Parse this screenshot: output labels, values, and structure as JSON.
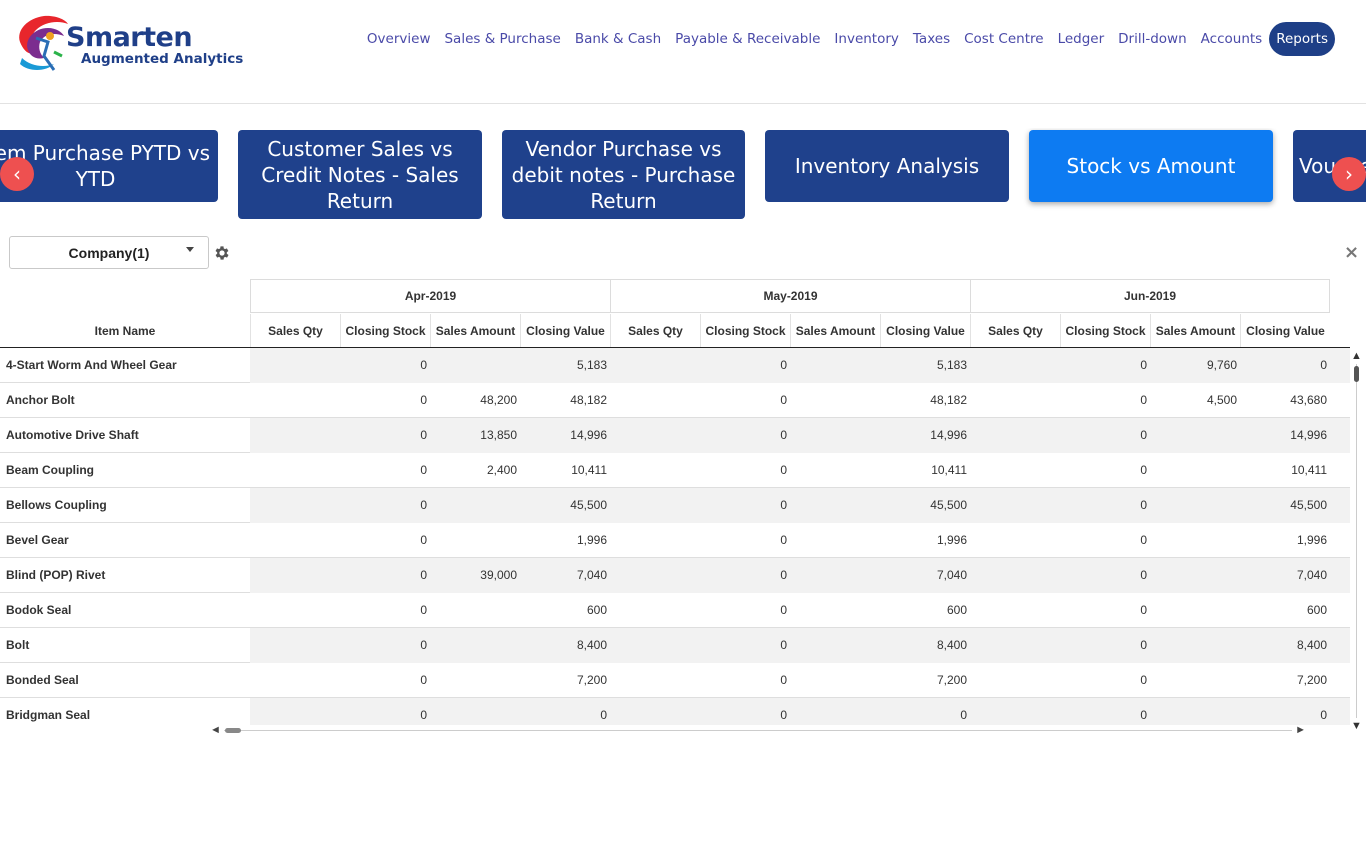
{
  "brand": {
    "name": "Smarten",
    "tagline": "Augmented Analytics"
  },
  "nav": [
    {
      "label": "Overview",
      "active": false
    },
    {
      "label": "Sales & Purchase",
      "active": false
    },
    {
      "label": "Bank & Cash",
      "active": false
    },
    {
      "label": "Payable & Receivable",
      "active": false
    },
    {
      "label": "Inventory",
      "active": false
    },
    {
      "label": "Taxes",
      "active": false
    },
    {
      "label": "Cost Centre",
      "active": false
    },
    {
      "label": "Ledger",
      "active": false
    },
    {
      "label": "Drill-down",
      "active": false
    },
    {
      "label": "Accounts",
      "active": false
    },
    {
      "label": "Reports",
      "active": true
    }
  ],
  "carousel": {
    "tiles": [
      {
        "label": "Item Purchase PYTD vs YTD",
        "active": false
      },
      {
        "label": "Customer Sales vs Credit Notes - Sales Return",
        "active": false
      },
      {
        "label": "Vendor Purchase vs debit notes - Purchase Return",
        "active": false
      },
      {
        "label": "Inventory Analysis",
        "active": false
      },
      {
        "label": "Stock vs Amount",
        "active": true
      },
      {
        "label": "Voucher",
        "active": false
      }
    ],
    "prev_label": "‹",
    "next_label": "›"
  },
  "filter": {
    "label": "Company(1)"
  },
  "close_label": "×",
  "table": {
    "item_header": "Item Name",
    "months": [
      "Apr-2019",
      "May-2019",
      "Jun-2019"
    ],
    "columns": [
      "Sales Qty",
      "Closing Stock",
      "Sales Amount",
      "Closing Value"
    ],
    "rows": [
      {
        "name": "4-Start Worm And Wheel Gear",
        "values": [
          [
            "",
            "0",
            "",
            "5,183"
          ],
          [
            "",
            "0",
            "",
            "5,183"
          ],
          [
            "",
            "0",
            "9,760",
            "0"
          ]
        ]
      },
      {
        "name": "Anchor Bolt",
        "values": [
          [
            "",
            "0",
            "48,200",
            "48,182"
          ],
          [
            "",
            "0",
            "",
            "48,182"
          ],
          [
            "",
            "0",
            "4,500",
            "43,680"
          ]
        ]
      },
      {
        "name": "Automotive Drive Shaft",
        "values": [
          [
            "",
            "0",
            "13,850",
            "14,996"
          ],
          [
            "",
            "0",
            "",
            "14,996"
          ],
          [
            "",
            "0",
            "",
            "14,996"
          ]
        ]
      },
      {
        "name": "Beam Coupling",
        "values": [
          [
            "",
            "0",
            "2,400",
            "10,411"
          ],
          [
            "",
            "0",
            "",
            "10,411"
          ],
          [
            "",
            "0",
            "",
            "10,411"
          ]
        ]
      },
      {
        "name": "Bellows Coupling",
        "values": [
          [
            "",
            "0",
            "",
            "45,500"
          ],
          [
            "",
            "0",
            "",
            "45,500"
          ],
          [
            "",
            "0",
            "",
            "45,500"
          ]
        ]
      },
      {
        "name": "Bevel Gear",
        "values": [
          [
            "",
            "0",
            "",
            "1,996"
          ],
          [
            "",
            "0",
            "",
            "1,996"
          ],
          [
            "",
            "0",
            "",
            "1,996"
          ]
        ]
      },
      {
        "name": "Blind (POP) Rivet",
        "values": [
          [
            "",
            "0",
            "39,000",
            "7,040"
          ],
          [
            "",
            "0",
            "",
            "7,040"
          ],
          [
            "",
            "0",
            "",
            "7,040"
          ]
        ]
      },
      {
        "name": "Bodok Seal",
        "values": [
          [
            "",
            "0",
            "",
            "600"
          ],
          [
            "",
            "0",
            "",
            "600"
          ],
          [
            "",
            "0",
            "",
            "600"
          ]
        ]
      },
      {
        "name": "Bolt",
        "values": [
          [
            "",
            "0",
            "",
            "8,400"
          ],
          [
            "",
            "0",
            "",
            "8,400"
          ],
          [
            "",
            "0",
            "",
            "8,400"
          ]
        ]
      },
      {
        "name": "Bonded Seal",
        "values": [
          [
            "",
            "0",
            "",
            "7,200"
          ],
          [
            "",
            "0",
            "",
            "7,200"
          ],
          [
            "",
            "0",
            "",
            "7,200"
          ]
        ]
      },
      {
        "name": "Bridgman Seal",
        "values": [
          [
            "",
            "0",
            "",
            "0"
          ],
          [
            "",
            "0",
            "",
            "0"
          ],
          [
            "",
            "0",
            "",
            "0"
          ]
        ]
      }
    ]
  },
  "colors": {
    "brand": "#1f3f88",
    "tile": "#1f418c",
    "tile_active": "#0d7bf2",
    "arrow": "#ee5050",
    "nav_text": "#4a4aa8"
  }
}
